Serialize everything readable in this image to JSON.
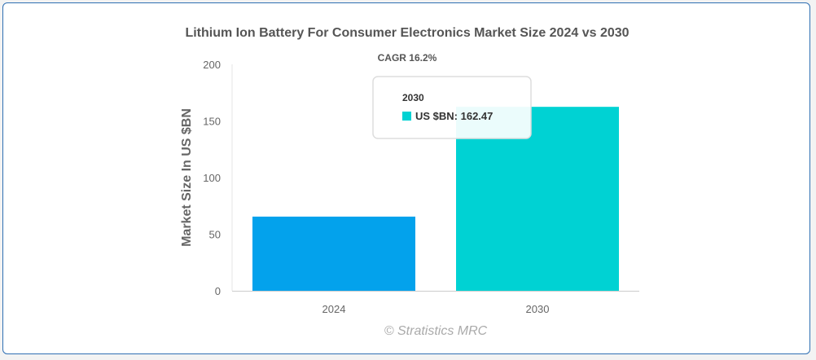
{
  "chart_data": {
    "type": "bar",
    "title": "Lithium Ion Battery For Consumer Electronics Market Size 2024 vs 2030",
    "subtitle": "CAGR 16.2%",
    "ylabel": "Market Size In US $BN",
    "xlabel": "",
    "categories": [
      "2024",
      "2030"
    ],
    "values": [
      65.5,
      162.47
    ],
    "ylim": [
      0,
      200
    ],
    "yticks": [
      0,
      50,
      100,
      150,
      200
    ],
    "grid": false,
    "colors": [
      "#03a2ec",
      "#00d2d3"
    ],
    "series_name": "US $BN",
    "tooltip": {
      "category": "2030",
      "text": "US $BN: 162.47",
      "color": "#00d2d3"
    },
    "credit": "© Stratistics MRC"
  }
}
